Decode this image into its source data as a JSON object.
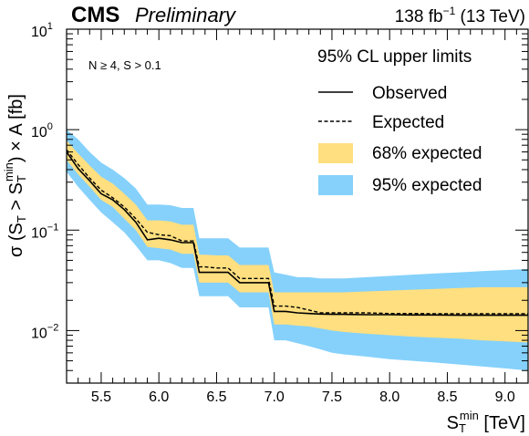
{
  "header": {
    "experiment": "CMS",
    "status": "Preliminary",
    "lumi_value": "138 fb",
    "lumi_exp": "−1",
    "energy": " (13 TeV)"
  },
  "cuts_label": "N ≥ 4, S > 0.1",
  "chart_data": {
    "type": "line",
    "xlabel": {
      "main": "S",
      "sub": "T",
      "sup": "min",
      "unit": " [TeV]"
    },
    "ylabel": {
      "p1": "σ (S",
      "sub1": "T",
      "p2": " > S",
      "sub2": "T",
      "sup2": "min",
      "p3": ") × A [fb]"
    },
    "xlim": [
      5.2,
      9.2
    ],
    "ylim": [
      0.003,
      10
    ],
    "yscale": "log",
    "grid": false,
    "legend_position": "top-right",
    "x_ticks": [
      "5.5",
      "6.0",
      "6.5",
      "7.0",
      "7.5",
      "8.0",
      "8.5",
      "9.0"
    ],
    "y_ticks": [
      {
        "base": "10",
        "exp": "1",
        "value": 10
      },
      {
        "base": "10",
        "exp": "0",
        "value": 1
      },
      {
        "base": "10",
        "exp": "−1",
        "value": 0.1
      },
      {
        "base": "10",
        "exp": "−2",
        "value": 0.01
      }
    ],
    "legend": {
      "title": "95% CL upper limits",
      "observed": "Observed",
      "expected": "Expected",
      "band68": "68% expected",
      "band95": "95% expected"
    },
    "colors": {
      "band68": "#ffdf7f",
      "band95": "#85d1fb",
      "line": "#000000"
    },
    "x": [
      5.2,
      5.3,
      5.4,
      5.5,
      5.6,
      5.7,
      5.8,
      5.9,
      6.0,
      6.1,
      6.2,
      6.3,
      6.35,
      6.4,
      6.5,
      6.6,
      6.7,
      6.8,
      6.9,
      6.95,
      7.0,
      7.1,
      7.2,
      7.3,
      7.4,
      7.5,
      7.6,
      7.8,
      8.0,
      8.2,
      8.4,
      8.6,
      8.8,
      9.0,
      9.2
    ],
    "observed": [
      0.6,
      0.41,
      0.31,
      0.23,
      0.2,
      0.16,
      0.12,
      0.08,
      0.083,
      0.08,
      0.075,
      0.075,
      0.038,
      0.038,
      0.038,
      0.038,
      0.03,
      0.03,
      0.03,
      0.03,
      0.0155,
      0.0155,
      0.015,
      0.0148,
      0.0146,
      0.0145,
      0.0145,
      0.0144,
      0.0144,
      0.0143,
      0.0143,
      0.0142,
      0.0142,
      0.0142,
      0.0142
    ],
    "expected": [
      0.63,
      0.45,
      0.33,
      0.25,
      0.21,
      0.17,
      0.13,
      0.095,
      0.09,
      0.088,
      0.078,
      0.078,
      0.043,
      0.043,
      0.042,
      0.042,
      0.033,
      0.033,
      0.033,
      0.033,
      0.0175,
      0.0175,
      0.017,
      0.016,
      0.015,
      0.015,
      0.015,
      0.015,
      0.0148,
      0.0148,
      0.0147,
      0.0147,
      0.0147,
      0.0147,
      0.0147
    ],
    "band68_low": [
      0.5,
      0.36,
      0.27,
      0.2,
      0.17,
      0.13,
      0.1,
      0.068,
      0.066,
      0.064,
      0.058,
      0.058,
      0.03,
      0.03,
      0.03,
      0.03,
      0.024,
      0.024,
      0.024,
      0.024,
      0.0115,
      0.0115,
      0.0112,
      0.011,
      0.0105,
      0.01,
      0.0097,
      0.0093,
      0.009,
      0.0087,
      0.0085,
      0.0083,
      0.008,
      0.0078,
      0.0076
    ],
    "band68_high": [
      0.78,
      0.58,
      0.44,
      0.34,
      0.29,
      0.23,
      0.18,
      0.125,
      0.125,
      0.122,
      0.113,
      0.113,
      0.057,
      0.057,
      0.056,
      0.056,
      0.045,
      0.045,
      0.045,
      0.045,
      0.024,
      0.024,
      0.024,
      0.024,
      0.024,
      0.024,
      0.024,
      0.0245,
      0.025,
      0.0255,
      0.026,
      0.0265,
      0.027,
      0.027,
      0.027
    ],
    "band95_low": [
      0.38,
      0.27,
      0.2,
      0.15,
      0.12,
      0.095,
      0.07,
      0.05,
      0.05,
      0.047,
      0.042,
      0.042,
      0.022,
      0.022,
      0.022,
      0.022,
      0.017,
      0.017,
      0.017,
      0.017,
      0.008,
      0.008,
      0.0075,
      0.007,
      0.0065,
      0.006,
      0.0058,
      0.0055,
      0.0052,
      0.005,
      0.0048,
      0.0046,
      0.0044,
      0.0042,
      0.004
    ],
    "band95_high": [
      1.0,
      0.8,
      0.6,
      0.47,
      0.4,
      0.33,
      0.26,
      0.18,
      0.18,
      0.177,
      0.166,
      0.166,
      0.083,
      0.083,
      0.083,
      0.083,
      0.067,
      0.067,
      0.067,
      0.067,
      0.038,
      0.036,
      0.034,
      0.034,
      0.033,
      0.033,
      0.033,
      0.034,
      0.035,
      0.036,
      0.037,
      0.038,
      0.039,
      0.04,
      0.041
    ]
  }
}
